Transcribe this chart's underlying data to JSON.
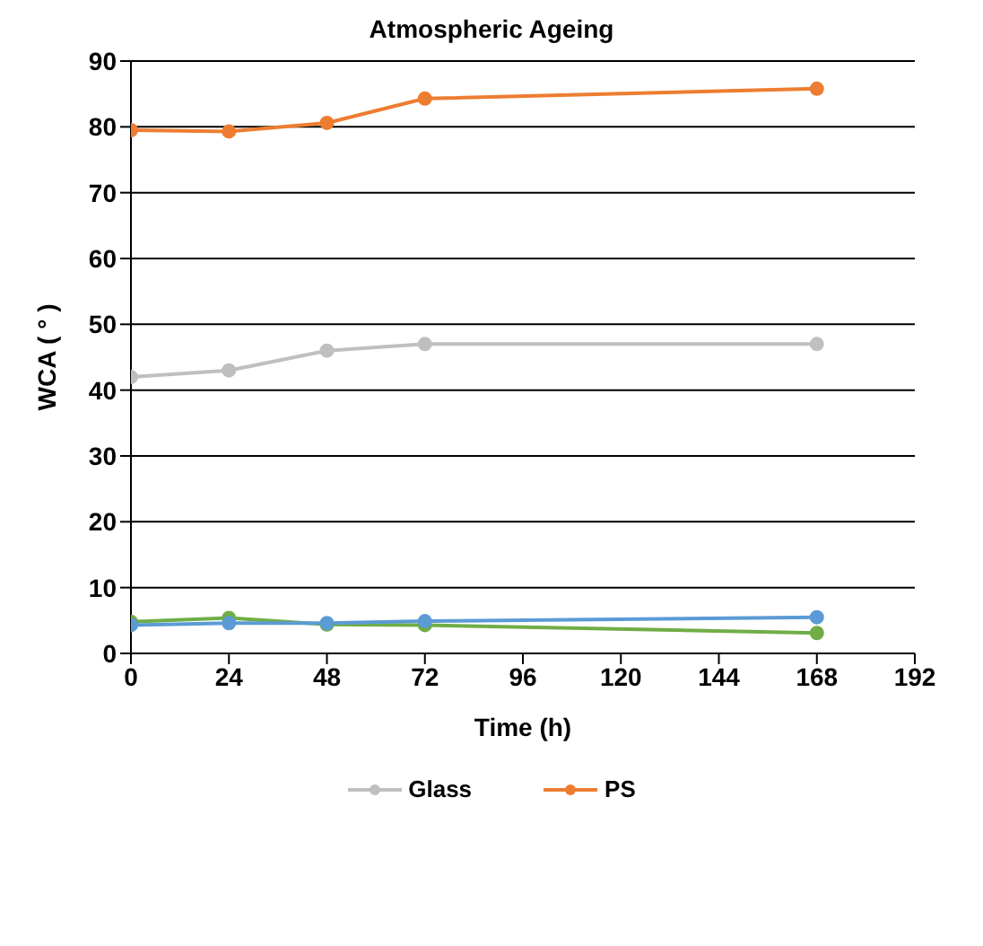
{
  "chart_data": {
    "type": "line",
    "title": "Atmospheric Ageing",
    "xlabel": "Time (h)",
    "ylabel": "WCA ( ° )",
    "x": [
      0,
      24,
      48,
      72,
      168
    ],
    "series": [
      {
        "name": "Glass",
        "color": "#bfbfbf",
        "values": [
          42,
          43,
          46,
          47,
          47
        ]
      },
      {
        "name": "PS",
        "color": "#ed7d31",
        "values": [
          79.5,
          79.3,
          80.6,
          84.3,
          85.8
        ]
      },
      {
        "color": "#70ad47",
        "values": [
          4.8,
          5.4,
          4.4,
          4.3,
          3.1
        ]
      },
      {
        "color": "#5b9bd5",
        "values": [
          4.3,
          4.6,
          4.6,
          4.9,
          5.5
        ]
      }
    ],
    "xlim": [
      0,
      192
    ],
    "xticks": [
      0,
      24,
      48,
      72,
      96,
      120,
      144,
      168,
      192
    ],
    "ylim": [
      0,
      90
    ],
    "yticks": [
      0,
      10,
      20,
      30,
      40,
      50,
      60,
      70,
      80,
      90
    ],
    "grid": "y",
    "legend": "bottom",
    "marker": "circle",
    "line_style": "solid"
  }
}
